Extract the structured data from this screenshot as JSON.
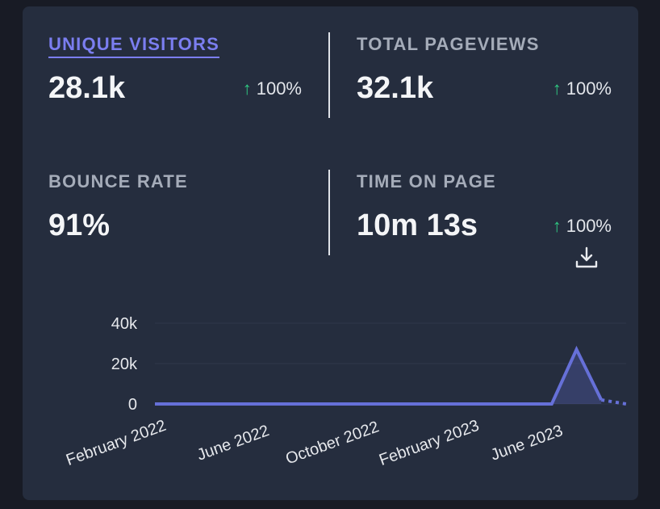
{
  "metrics": [
    {
      "label": "UNIQUE VISITORS",
      "value": "28.1k",
      "change": "100%",
      "active": true
    },
    {
      "label": "TOTAL PAGEVIEWS",
      "value": "32.1k",
      "change": "100%",
      "active": false
    },
    {
      "label": "BOUNCE RATE",
      "value": "91%",
      "change": "",
      "active": false
    },
    {
      "label": "TIME ON PAGE",
      "value": "10m 13s",
      "change": "100%",
      "active": false
    }
  ],
  "change_arrow": "↑",
  "colors": {
    "accent": "#7b7ef0",
    "positive": "#2fca83",
    "series": "#6670d8"
  },
  "chart_data": {
    "type": "area",
    "ylim": [
      0,
      40000
    ],
    "y_ticks": [
      "40k",
      "20k",
      "0"
    ],
    "y_tick_values": [
      40000,
      20000,
      0
    ],
    "x_ticks": [
      "February 2022",
      "June 2022",
      "October 2022",
      "February 2023",
      "June 2023"
    ],
    "x": [
      "2022-02",
      "2022-03",
      "2022-04",
      "2022-05",
      "2022-06",
      "2022-07",
      "2022-08",
      "2022-09",
      "2022-10",
      "2022-11",
      "2022-12",
      "2023-01",
      "2023-02",
      "2023-03",
      "2023-04",
      "2023-05",
      "2023-06",
      "2023-07",
      "2023-08",
      "2023-09"
    ],
    "series": [
      {
        "values": [
          0,
          0,
          0,
          0,
          0,
          0,
          0,
          0,
          0,
          0,
          0,
          0,
          0,
          0,
          0,
          0,
          0,
          27000,
          2000,
          0
        ],
        "incomplete_from_index": 18
      }
    ]
  }
}
